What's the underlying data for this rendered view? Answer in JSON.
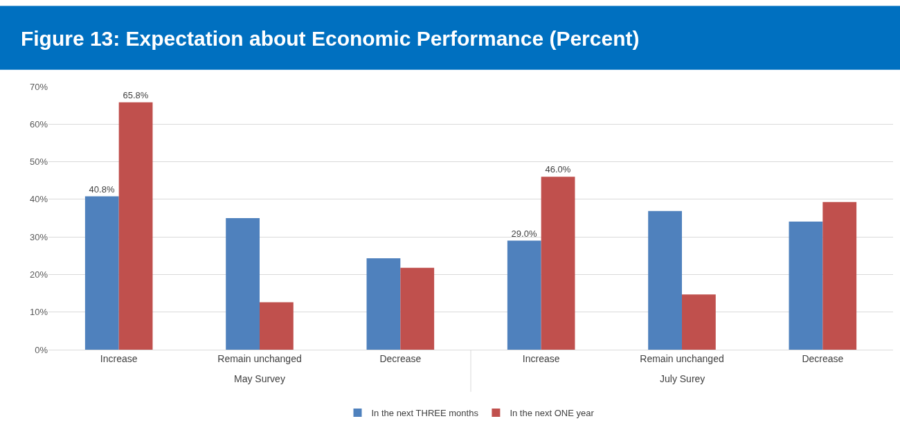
{
  "chart_data": {
    "type": "bar",
    "title": "Figure 13: Expectation about Economic Performance (Percent)",
    "categories": [
      "Increase",
      "Remain unchanged",
      "Decrease",
      "Increase",
      "Remain unchanged",
      "Decrease"
    ],
    "annotations": [
      "May Survey",
      "July Surey"
    ],
    "series": [
      {
        "name": "In the next THREE months",
        "color": "#4f81bd",
        "values": [
          40.8,
          35,
          24.3,
          29.0,
          36.9,
          34.1
        ],
        "value_labels": [
          "40.8%",
          null,
          null,
          "29.0%",
          null,
          null
        ]
      },
      {
        "name": "In the next ONE year",
        "color": "#c0504d",
        "values": [
          65.8,
          12.6,
          21.8,
          46.0,
          14.7,
          39.3
        ],
        "value_labels": [
          "65.8%",
          null,
          null,
          "46.0%",
          null,
          null
        ]
      }
    ],
    "ylim": [
      0,
      70
    ],
    "yticks": [
      {
        "value": 0,
        "label": "0%"
      },
      {
        "value": 10,
        "label": "10%"
      },
      {
        "value": 20,
        "label": "20%"
      },
      {
        "value": 30,
        "label": "30%"
      },
      {
        "value": 40,
        "label": "40%"
      },
      {
        "value": 50,
        "label": "50%"
      },
      {
        "value": 60,
        "label": "60%"
      },
      {
        "value": 70,
        "label": "70%"
      }
    ],
    "grid": "y",
    "legend": "bottom"
  }
}
